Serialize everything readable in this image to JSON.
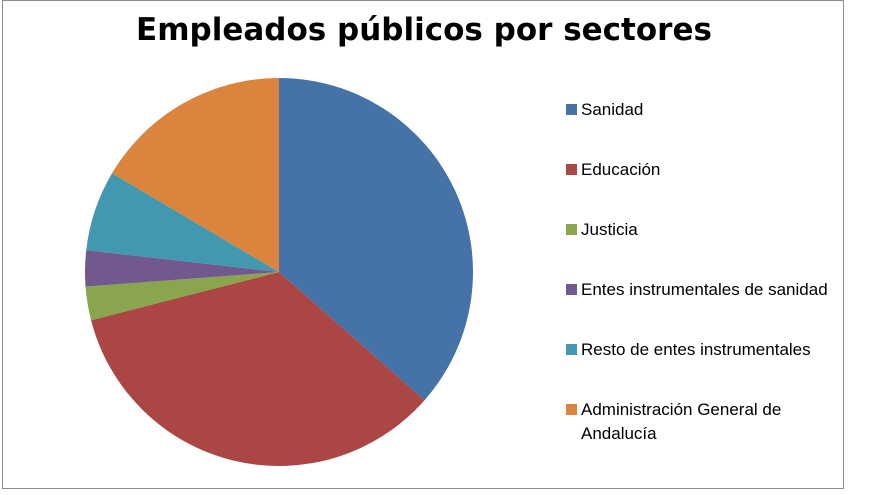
{
  "chart_data": {
    "type": "pie",
    "title": "Empleados públicos por sectores",
    "legend_position": "right",
    "slices": [
      {
        "label": "Sanidad",
        "value": 36.5,
        "color": "#4572A7"
      },
      {
        "label": "Educación",
        "value": 34.5,
        "color": "#AA4643"
      },
      {
        "label": "Justicia",
        "value": 2.8,
        "color": "#89A54E"
      },
      {
        "label": "Entes instrumentales de sanidad",
        "value": 3.0,
        "color": "#71588F"
      },
      {
        "label": "Resto de entes instrumentales",
        "value": 6.7,
        "color": "#4198AF"
      },
      {
        "label": "Administración General de Andalucía",
        "value": 16.5,
        "color": "#DB843D"
      }
    ]
  }
}
